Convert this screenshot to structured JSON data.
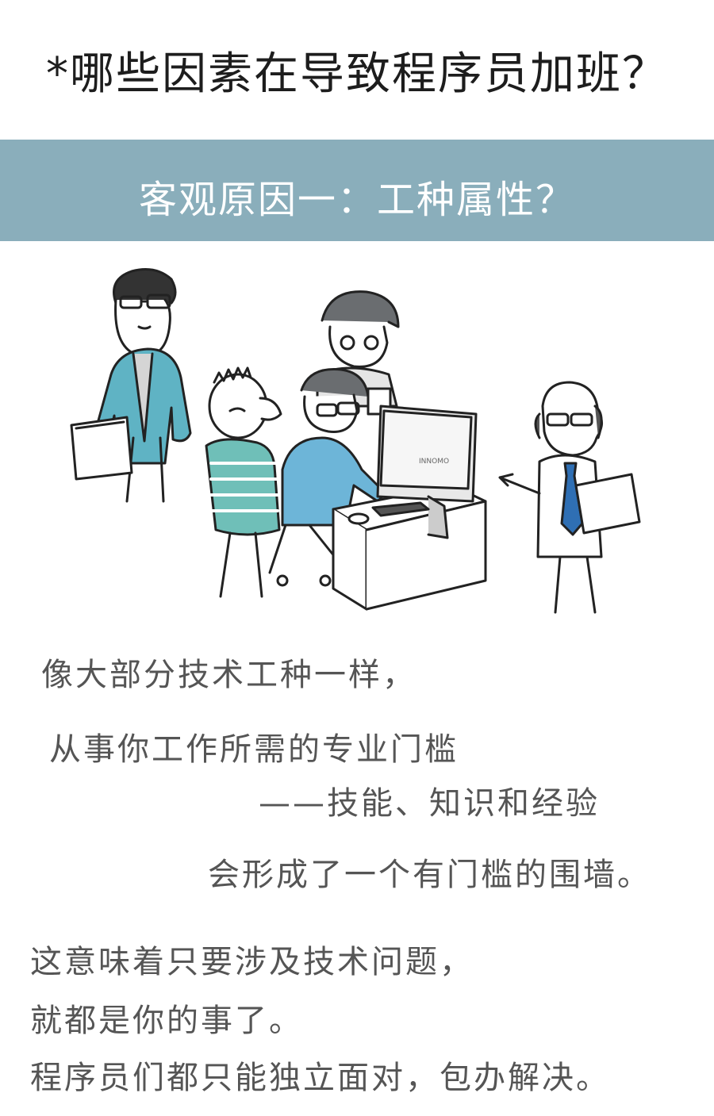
{
  "title": "*哪些因素在导致程序员加班？",
  "banner": {
    "text": "客观原因一：工种属性？"
  },
  "illustration": {
    "monitor_brand_text": "INNOMO"
  },
  "body_lines": [
    "像大部分技术工种一样，",
    "从事你工作所需的专业门槛",
    "——技能、知识和经验",
    "会形成了一个有门槛的围墙。",
    "这意味着只要涉及技术问题，",
    "就都是你的事了。",
    "程序员们都只能独立面对，包办解决。"
  ],
  "colors": {
    "banner_bg": "#8aaebb",
    "jacket_teal": "#5fb3c4",
    "shirt_blue": "#6db5d8",
    "tie_blue": "#2f6fb4",
    "hair_gray": "#6a6d70"
  }
}
